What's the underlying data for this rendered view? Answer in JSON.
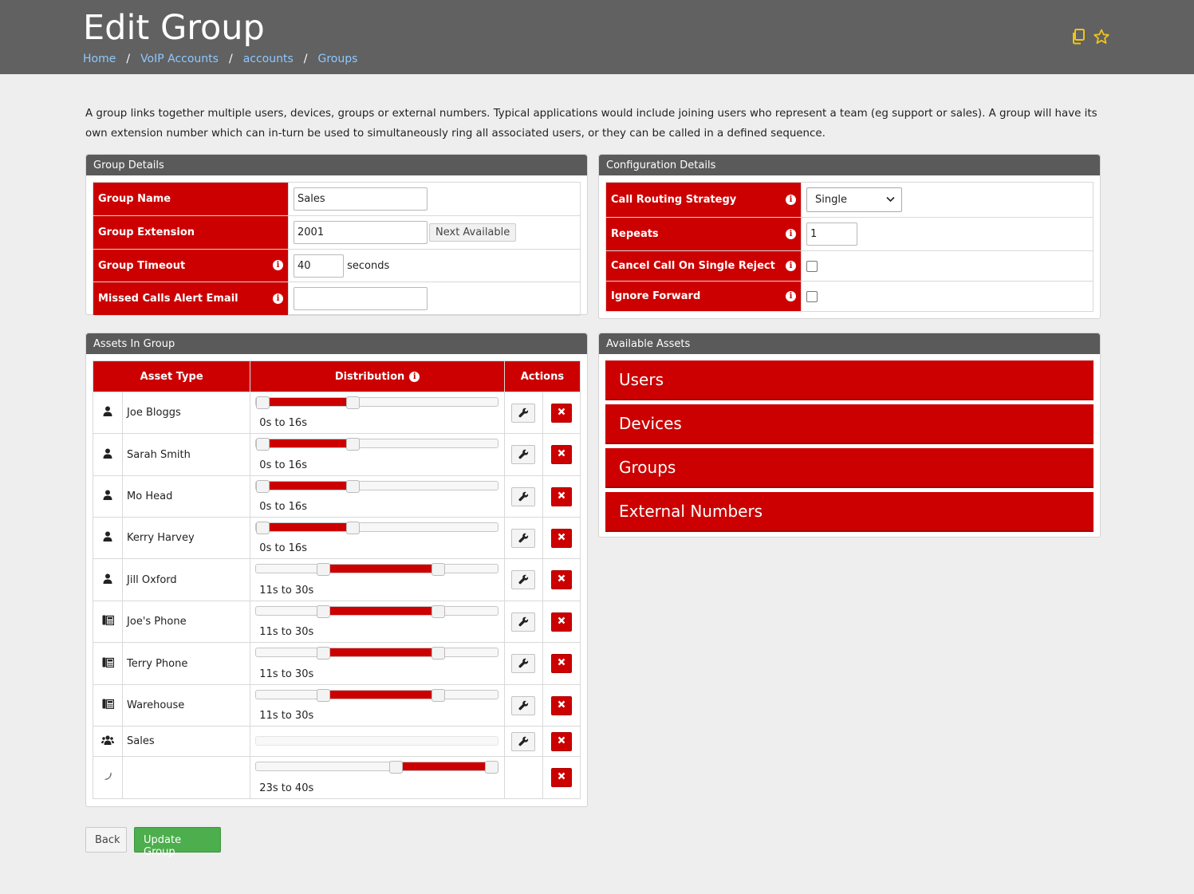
{
  "header": {
    "title": "Edit Group",
    "breadcrumb": [
      {
        "label": "Home"
      },
      {
        "label": "VoIP Accounts"
      },
      {
        "label": "accounts"
      },
      {
        "label": "Groups"
      }
    ],
    "separator": "/",
    "icons": [
      "copy-icon",
      "star-icon"
    ],
    "icon_color": "#f0c419"
  },
  "intro_text": "A group links together multiple users, devices, groups or external numbers. Typical applications would include joining users who represent a team (eg support or sales). A group will have its own extension number which can in-turn be used to simultaneously ring all associated users, or they can be called in a defined sequence.",
  "group_details": {
    "title": "Group Details",
    "group_name_label": "Group Name",
    "group_name_value": "Sales",
    "group_extension_label": "Group Extension",
    "group_extension_value": "2001",
    "next_available_label": "Next Available",
    "group_timeout_label": "Group Timeout",
    "group_timeout_value": "40",
    "group_timeout_unit": "seconds",
    "missed_calls_label": "Missed Calls Alert Email",
    "missed_calls_value": ""
  },
  "config_details": {
    "title": "Configuration Details",
    "call_routing_label": "Call Routing Strategy",
    "call_routing_value": "Single",
    "repeats_label": "Repeats",
    "repeats_value": "1",
    "cancel_call_label": "Cancel Call On Single Reject",
    "cancel_call_checked": false,
    "ignore_forward_label": "Ignore Forward",
    "ignore_forward_checked": false
  },
  "assets_in_group": {
    "title": "Assets In Group",
    "columns": {
      "asset_type": "Asset Type",
      "distribution": "Distribution",
      "actions": "Actions"
    },
    "rows": [
      {
        "icon": "user-icon",
        "name": "Joe Bloggs",
        "range": "0s to 16s",
        "start": 0,
        "end": 0.4,
        "editable": true
      },
      {
        "icon": "user-icon",
        "name": "Sarah Smith",
        "range": "0s to 16s",
        "start": 0,
        "end": 0.4,
        "editable": true
      },
      {
        "icon": "user-icon",
        "name": "Mo Head",
        "range": "0s to 16s",
        "start": 0,
        "end": 0.4,
        "editable": true
      },
      {
        "icon": "user-icon",
        "name": "Kerry Harvey",
        "range": "0s to 16s",
        "start": 0,
        "end": 0.4,
        "editable": true
      },
      {
        "icon": "user-icon",
        "name": "Jill Oxford",
        "range": "11s to 30s",
        "start": 0.275,
        "end": 0.75,
        "editable": true
      },
      {
        "icon": "desk-phone-icon",
        "name": "Joe's Phone",
        "range": "11s to 30s",
        "start": 0.275,
        "end": 0.75,
        "editable": true
      },
      {
        "icon": "desk-phone-icon",
        "name": "Terry Phone",
        "range": "11s to 30s",
        "start": 0.275,
        "end": 0.75,
        "editable": true
      },
      {
        "icon": "desk-phone-icon",
        "name": "Warehouse",
        "range": "11s to 30s",
        "start": 0.275,
        "end": 0.75,
        "editable": true
      },
      {
        "icon": "group-icon",
        "name": "Sales",
        "range": "",
        "start": null,
        "end": null,
        "editable": true
      },
      {
        "icon": "handset-icon",
        "name": "",
        "range": "23s to 40s",
        "start": 0.575,
        "end": 1.0,
        "editable": false
      }
    ]
  },
  "available_assets": {
    "title": "Available Assets",
    "items": [
      "Users",
      "Devices",
      "Groups",
      "External Numbers"
    ]
  },
  "footer": {
    "back_label": "Back",
    "update_label": "Update Group"
  },
  "colors": {
    "accent_red": "#cc0000",
    "header_bg": "#616161",
    "panel_head_bg": "#5a5a5a",
    "link_blue": "#8ec8ff",
    "success_green": "#4cae4c"
  }
}
